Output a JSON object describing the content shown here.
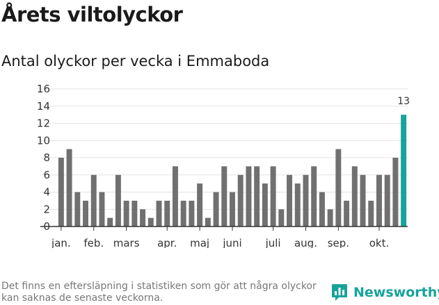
{
  "header": {
    "title": "Årets viltolyckor",
    "subtitle": "Antal olyckor per vecka i Emmaboda"
  },
  "chart_data": {
    "type": "bar",
    "title": "Årets viltolyckor",
    "subtitle": "Antal olyckor per vecka i Emmaboda",
    "xlabel": "",
    "ylabel": "",
    "ylim": [
      0,
      16
    ],
    "yticks": [
      0,
      2,
      4,
      6,
      8,
      10,
      12,
      14,
      16
    ],
    "grid": true,
    "legend": "none",
    "x": [
      1,
      2,
      3,
      4,
      5,
      6,
      7,
      8,
      9,
      10,
      11,
      12,
      13,
      14,
      15,
      16,
      17,
      18,
      19,
      20,
      21,
      22,
      23,
      24,
      25,
      26,
      27,
      28,
      29,
      30,
      31,
      32,
      33,
      34,
      35,
      36,
      37,
      38,
      39,
      40,
      41,
      42,
      43
    ],
    "values": [
      8,
      9,
      4,
      3,
      6,
      4,
      1,
      6,
      3,
      3,
      2,
      1,
      3,
      3,
      7,
      3,
      3,
      5,
      1,
      4,
      7,
      4,
      6,
      7,
      7,
      5,
      7,
      2,
      6,
      5,
      6,
      7,
      4,
      2,
      9,
      3,
      7,
      6,
      3,
      6,
      6,
      8,
      13
    ],
    "month_labels": [
      {
        "label": "jan.",
        "week": 1
      },
      {
        "label": "feb.",
        "week": 5
      },
      {
        "label": "mars",
        "week": 9
      },
      {
        "label": "apr.",
        "week": 14
      },
      {
        "label": "maj",
        "week": 18
      },
      {
        "label": "juni",
        "week": 22
      },
      {
        "label": "juli",
        "week": 27
      },
      {
        "label": "aug.",
        "week": 31
      },
      {
        "label": "sep.",
        "week": 35
      },
      {
        "label": "okt.",
        "week": 40
      }
    ],
    "highlight": {
      "week": 43,
      "value": 13,
      "label": "13"
    },
    "colors": {
      "bar": "#707070",
      "highlight": "#17a39a",
      "grid": "#e3e3e3",
      "axis": "#333333"
    }
  },
  "footer": {
    "note": "Det finns en eftersläpning i statistiken som gör att några olyckor kan saknas de senaste veckorna.",
    "brand": "Newsworthy",
    "brand_color": "#17a39a",
    "brand_icon": "newsworthy-chart-icon"
  }
}
